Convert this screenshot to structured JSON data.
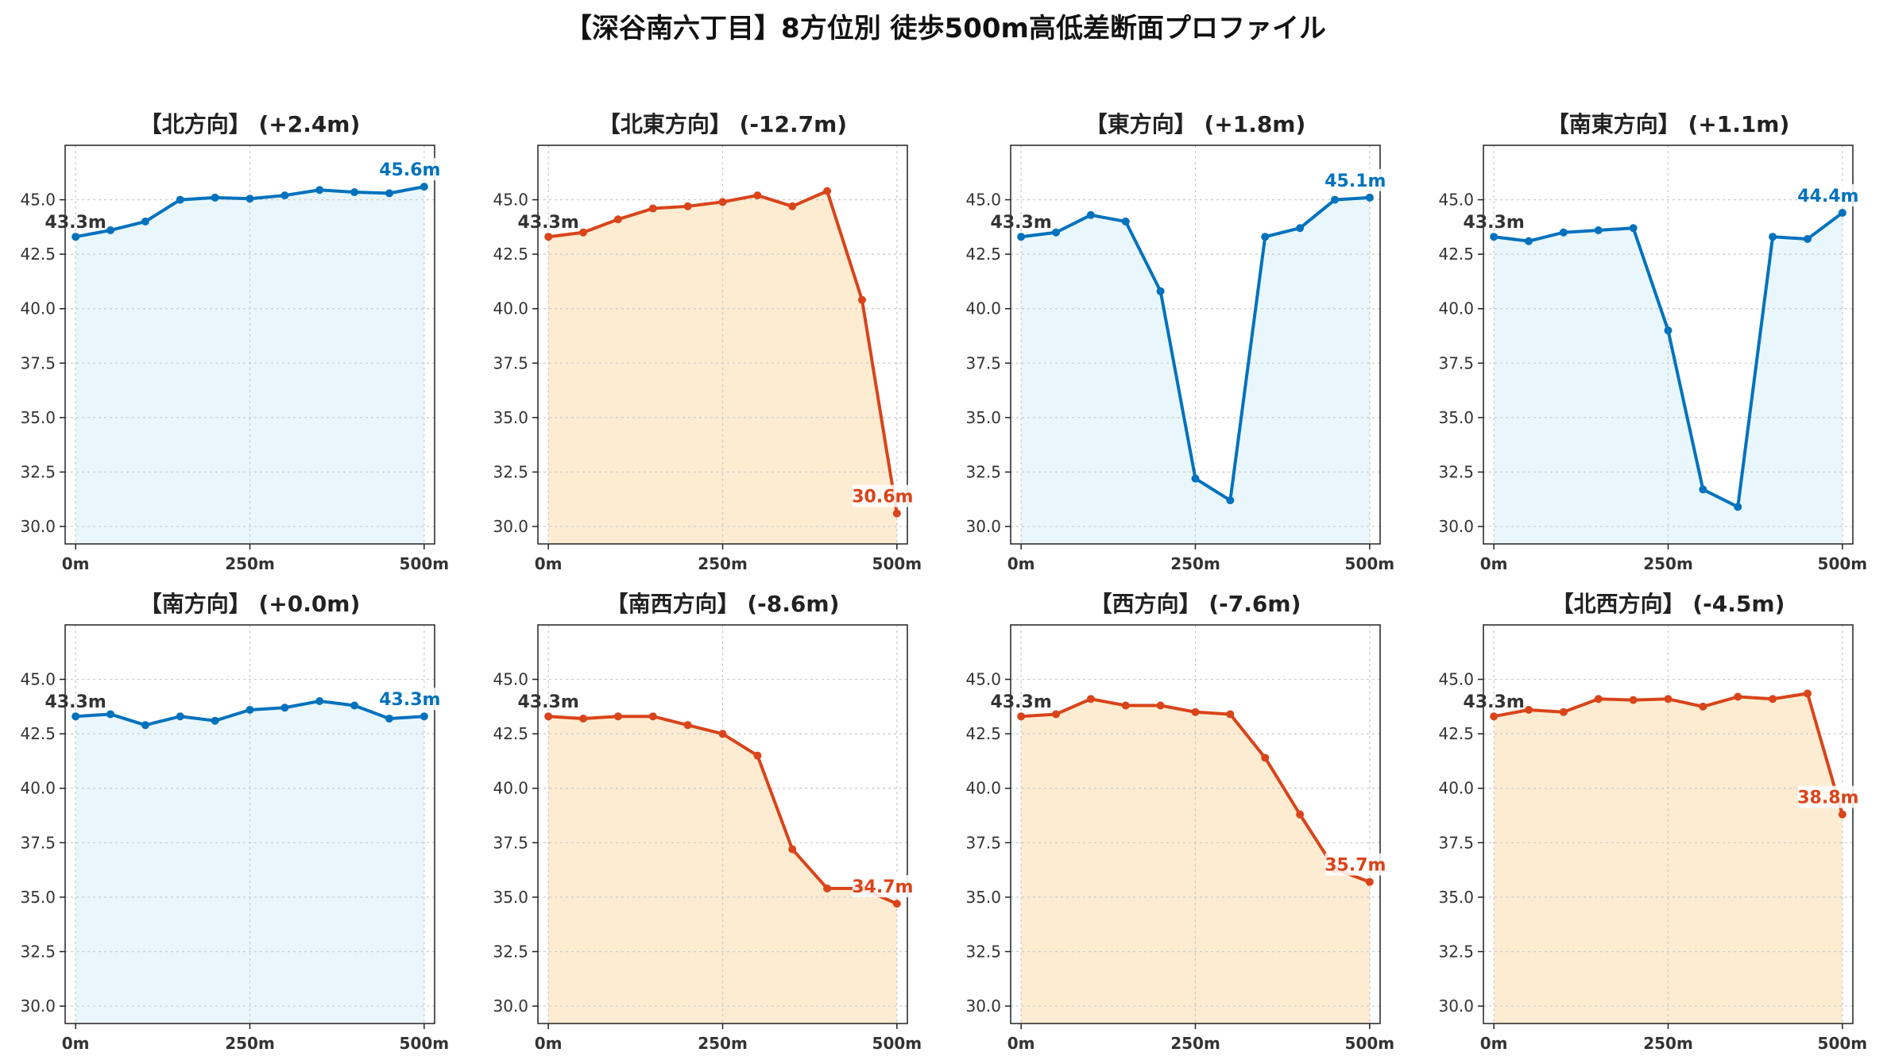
{
  "title": "【深谷南六丁目】8方位別 徒歩500m高低差断面プロファイル",
  "colors": {
    "up": "#0072bd",
    "up_fill": "#e9f7fc",
    "down": "#d9441a",
    "down_fill": "#fdecd2",
    "grid": "#c8c8c8"
  },
  "chart_data": [
    {
      "type": "area",
      "title": "【北方向】 (+2.4m)",
      "x": [
        0,
        50,
        100,
        150,
        200,
        250,
        300,
        350,
        400,
        450,
        500
      ],
      "y": [
        43.3,
        43.6,
        44.0,
        45.0,
        45.1,
        45.05,
        45.2,
        45.45,
        45.35,
        45.3,
        45.6
      ],
      "start_label": "43.3m",
      "end_label": "45.6m",
      "trend": "up",
      "xticks": [
        "0m",
        "250m",
        "500m"
      ],
      "yticks": [
        "30.0",
        "32.5",
        "35.0",
        "37.5",
        "40.0",
        "42.5",
        "45.0"
      ],
      "ylim": [
        29.2,
        47.5
      ],
      "grid": true
    },
    {
      "type": "area",
      "title": "【北東方向】 (-12.7m)",
      "x": [
        0,
        50,
        100,
        150,
        200,
        250,
        300,
        350,
        400,
        450,
        500
      ],
      "y": [
        43.3,
        43.5,
        44.1,
        44.6,
        44.7,
        44.9,
        45.2,
        44.7,
        45.4,
        40.4,
        30.6
      ],
      "start_label": "43.3m",
      "end_label": "30.6m",
      "trend": "down",
      "xticks": [
        "0m",
        "250m",
        "500m"
      ],
      "yticks": [
        "30.0",
        "32.5",
        "35.0",
        "37.5",
        "40.0",
        "42.5",
        "45.0"
      ],
      "ylim": [
        29.2,
        47.5
      ],
      "grid": true
    },
    {
      "type": "area",
      "title": "【東方向】 (+1.8m)",
      "x": [
        0,
        50,
        100,
        150,
        200,
        250,
        300,
        350,
        400,
        450,
        500
      ],
      "y": [
        43.3,
        43.5,
        44.3,
        44.0,
        40.8,
        32.2,
        31.2,
        43.3,
        43.7,
        45.0,
        45.1
      ],
      "start_label": "43.3m",
      "end_label": "45.1m",
      "trend": "up",
      "xticks": [
        "0m",
        "250m",
        "500m"
      ],
      "yticks": [
        "30.0",
        "32.5",
        "35.0",
        "37.5",
        "40.0",
        "42.5",
        "45.0"
      ],
      "ylim": [
        29.2,
        47.5
      ],
      "grid": true
    },
    {
      "type": "area",
      "title": "【南東方向】 (+1.1m)",
      "x": [
        0,
        50,
        100,
        150,
        200,
        250,
        300,
        350,
        400,
        450,
        500
      ],
      "y": [
        43.3,
        43.1,
        43.5,
        43.6,
        43.7,
        39.0,
        31.7,
        30.9,
        43.3,
        43.2,
        44.4
      ],
      "start_label": "43.3m",
      "end_label": "44.4m",
      "trend": "up",
      "xticks": [
        "0m",
        "250m",
        "500m"
      ],
      "yticks": [
        "30.0",
        "32.5",
        "35.0",
        "37.5",
        "40.0",
        "42.5",
        "45.0"
      ],
      "ylim": [
        29.2,
        47.5
      ],
      "grid": true
    },
    {
      "type": "area",
      "title": "【南方向】 (+0.0m)",
      "x": [
        0,
        50,
        100,
        150,
        200,
        250,
        300,
        350,
        400,
        450,
        500
      ],
      "y": [
        43.3,
        43.4,
        42.9,
        43.3,
        43.1,
        43.6,
        43.7,
        44.0,
        43.8,
        43.2,
        43.3
      ],
      "start_label": "43.3m",
      "end_label": "43.3m",
      "trend": "up",
      "xticks": [
        "0m",
        "250m",
        "500m"
      ],
      "yticks": [
        "30.0",
        "32.5",
        "35.0",
        "37.5",
        "40.0",
        "42.5",
        "45.0"
      ],
      "ylim": [
        29.2,
        47.5
      ],
      "grid": true
    },
    {
      "type": "area",
      "title": "【南西方向】 (-8.6m)",
      "x": [
        0,
        50,
        100,
        150,
        200,
        250,
        300,
        350,
        400,
        450,
        500
      ],
      "y": [
        43.3,
        43.2,
        43.3,
        43.3,
        42.9,
        42.5,
        41.5,
        37.2,
        35.4,
        35.4,
        34.7
      ],
      "start_label": "43.3m",
      "end_label": "34.7m",
      "trend": "down",
      "xticks": [
        "0m",
        "250m",
        "500m"
      ],
      "yticks": [
        "30.0",
        "32.5",
        "35.0",
        "37.5",
        "40.0",
        "42.5",
        "45.0"
      ],
      "ylim": [
        29.2,
        47.5
      ],
      "grid": true
    },
    {
      "type": "area",
      "title": "【西方向】 (-7.6m)",
      "x": [
        0,
        50,
        100,
        150,
        200,
        250,
        300,
        350,
        400,
        450,
        500
      ],
      "y": [
        43.3,
        43.4,
        44.1,
        43.8,
        43.8,
        43.5,
        43.4,
        41.4,
        38.8,
        36.3,
        35.7
      ],
      "start_label": "43.3m",
      "end_label": "35.7m",
      "trend": "down",
      "xticks": [
        "0m",
        "250m",
        "500m"
      ],
      "yticks": [
        "30.0",
        "32.5",
        "35.0",
        "37.5",
        "40.0",
        "42.5",
        "45.0"
      ],
      "ylim": [
        29.2,
        47.5
      ],
      "grid": true
    },
    {
      "type": "area",
      "title": "【北西方向】 (-4.5m)",
      "x": [
        0,
        50,
        100,
        150,
        200,
        250,
        300,
        350,
        400,
        450,
        500
      ],
      "y": [
        43.3,
        43.6,
        43.5,
        44.1,
        44.05,
        44.1,
        43.75,
        44.2,
        44.1,
        44.35,
        38.8
      ],
      "start_label": "43.3m",
      "end_label": "38.8m",
      "trend": "down",
      "xticks": [
        "0m",
        "250m",
        "500m"
      ],
      "yticks": [
        "30.0",
        "32.5",
        "35.0",
        "37.5",
        "40.0",
        "42.5",
        "45.0"
      ],
      "ylim": [
        29.2,
        47.5
      ],
      "grid": true
    }
  ]
}
